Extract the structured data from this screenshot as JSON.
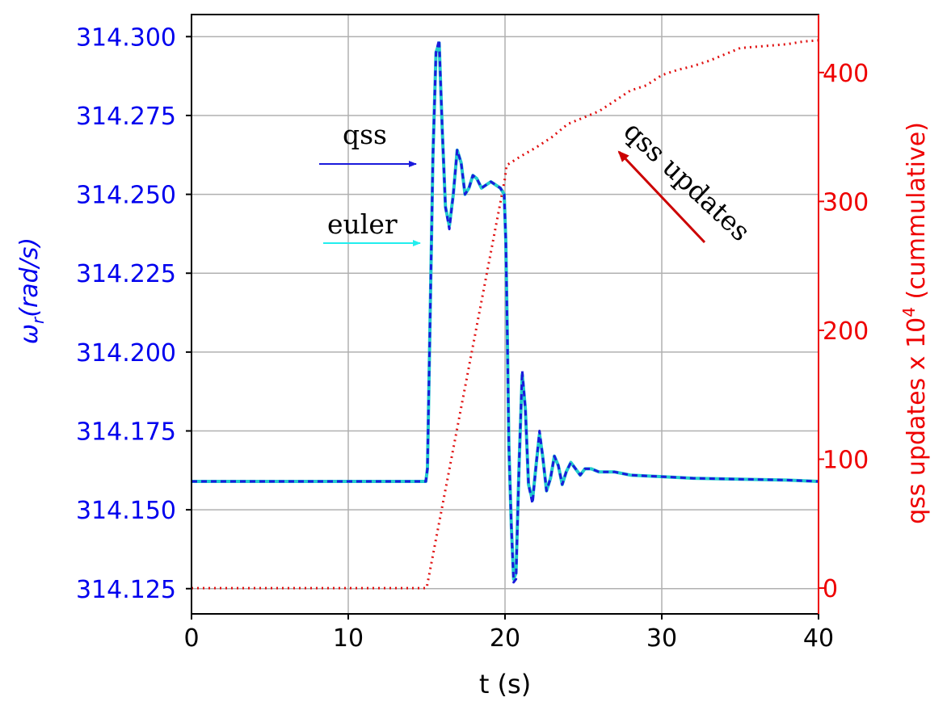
{
  "chart_data": {
    "type": "line",
    "xlabel": "t (s)",
    "ylabel_left": {
      "symbol": "ω",
      "sub": "r",
      "unit": "(rad/s)"
    },
    "ylabel_right": {
      "text": "qss updates x 10",
      "sup": "4",
      "tail": " (cummulative)"
    },
    "xlim": [
      0,
      40
    ],
    "ylim_left": [
      314.117,
      314.307
    ],
    "ylim_right": [
      -20,
      445
    ],
    "xticks": [
      "0",
      "10",
      "20",
      "30",
      "40"
    ],
    "yticks_left": [
      "314.125",
      "314.150",
      "314.175",
      "314.200",
      "314.225",
      "314.250",
      "314.275",
      "314.300"
    ],
    "yticks_right": [
      "0",
      "100",
      "200",
      "300",
      "400"
    ],
    "grid": true,
    "colors": {
      "qss": "#1a1adc",
      "euler": "#22cccc",
      "updates": "#e01010",
      "left_axis": "#0000ee",
      "right_axis": "#ee0000"
    },
    "annotations": {
      "qss": "qss",
      "euler": "euler",
      "updates": "qss updates"
    },
    "series": [
      {
        "name": "qss",
        "axis": "left",
        "style": "dashed",
        "x": [
          0,
          14.95,
          15.05,
          15.2,
          15.4,
          15.6,
          15.8,
          16.0,
          16.2,
          16.45,
          16.7,
          16.95,
          17.2,
          17.45,
          17.7,
          17.95,
          18.2,
          18.5,
          18.8,
          19.1,
          19.4,
          19.7,
          19.95,
          20.05,
          20.15,
          20.25,
          20.4,
          20.55,
          20.7,
          20.9,
          21.1,
          21.3,
          21.5,
          21.75,
          22.0,
          22.2,
          22.4,
          22.65,
          22.9,
          23.15,
          23.4,
          23.65,
          23.9,
          24.2,
          24.5,
          24.8,
          25.1,
          25.5,
          26.0,
          27.0,
          28.0,
          30.0,
          32.0,
          34.0,
          36.0,
          38.0,
          40.0
        ],
        "y": [
          314.159,
          314.159,
          314.163,
          314.205,
          314.262,
          314.295,
          314.299,
          314.27,
          314.246,
          314.239,
          314.25,
          314.264,
          314.26,
          314.25,
          314.252,
          314.256,
          314.255,
          314.252,
          314.253,
          314.254,
          314.253,
          314.252,
          314.25,
          314.235,
          314.205,
          314.17,
          314.145,
          314.127,
          314.128,
          314.165,
          314.194,
          314.182,
          314.158,
          314.152,
          314.165,
          314.175,
          314.167,
          314.156,
          314.16,
          314.167,
          314.164,
          314.158,
          314.162,
          314.165,
          314.163,
          314.161,
          314.163,
          314.163,
          314.162,
          314.162,
          314.161,
          314.1605,
          314.16,
          314.1598,
          314.1596,
          314.1594,
          314.159
        ]
      },
      {
        "name": "euler",
        "axis": "left",
        "style": "solid",
        "x": [
          0,
          14.95,
          15.05,
          15.2,
          15.4,
          15.6,
          15.8,
          16.0,
          16.2,
          16.45,
          16.7,
          16.95,
          17.2,
          17.45,
          17.7,
          17.95,
          18.2,
          18.5,
          18.8,
          19.1,
          19.4,
          19.7,
          19.95,
          20.05,
          20.15,
          20.25,
          20.4,
          20.55,
          20.7,
          20.9,
          21.1,
          21.3,
          21.5,
          21.75,
          22.0,
          22.2,
          22.4,
          22.65,
          22.9,
          23.15,
          23.4,
          23.65,
          23.9,
          24.2,
          24.5,
          24.8,
          25.1,
          25.5,
          26.0,
          27.0,
          28.0,
          30.0,
          32.0,
          34.0,
          36.0,
          38.0,
          40.0
        ],
        "y": [
          314.159,
          314.159,
          314.163,
          314.205,
          314.262,
          314.295,
          314.298,
          314.27,
          314.246,
          314.24,
          314.25,
          314.264,
          314.26,
          314.25,
          314.252,
          314.256,
          314.255,
          314.252,
          314.253,
          314.254,
          314.253,
          314.252,
          314.25,
          314.235,
          314.205,
          314.17,
          314.145,
          314.128,
          314.13,
          314.165,
          314.193,
          314.182,
          314.158,
          314.153,
          314.165,
          314.174,
          314.167,
          314.156,
          314.16,
          314.167,
          314.164,
          314.158,
          314.162,
          314.165,
          314.163,
          314.161,
          314.163,
          314.163,
          314.162,
          314.162,
          314.161,
          314.1605,
          314.16,
          314.1598,
          314.1596,
          314.1594,
          314.159
        ]
      },
      {
        "name": "qss updates",
        "axis": "right",
        "style": "dotted",
        "x": [
          0,
          15.0,
          20.0,
          20.1,
          21,
          22,
          23,
          24,
          25,
          26,
          27,
          28,
          29,
          30,
          31,
          32,
          33,
          34,
          35,
          36,
          37,
          38,
          39,
          40
        ],
        "y": [
          0,
          0,
          318,
          328,
          335,
          342,
          350,
          360,
          365,
          370,
          378,
          386,
          390,
          398,
          402,
          405,
          409,
          414,
          419,
          420,
          421,
          422,
          424,
          425
        ]
      }
    ]
  }
}
